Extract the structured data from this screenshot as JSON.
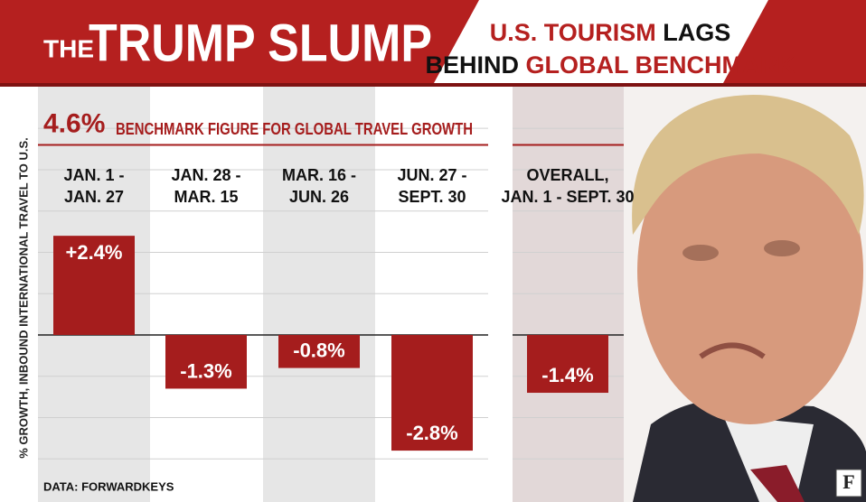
{
  "chart_data": {
    "type": "bar",
    "title": [
      "THE",
      "TRUMP SLUMP"
    ],
    "subtitle": [
      [
        {
          "text": "U.S. TOURISM",
          "color": "#b5201f"
        },
        {
          "text": " LAGS",
          "color": "#111111"
        }
      ],
      [
        {
          "text": "BEHIND ",
          "color": "#111111"
        },
        {
          "text": "GLOBAL BENCHMARK",
          "color": "#b5201f"
        }
      ]
    ],
    "y_label": "% GROWTH, INBOUND INTERNATIONAL TRAVEL TO U.S.",
    "categories": [
      [
        "JAN. 1 -",
        "JAN. 27"
      ],
      [
        "JAN. 28 -",
        "MAR. 15"
      ],
      [
        "MAR. 16 -",
        "JUN. 26"
      ],
      [
        "JUN. 27 -",
        "SEPT. 30"
      ],
      [
        "OVERALL,",
        "JAN. 1 - SEPT. 30"
      ]
    ],
    "values": [
      2.4,
      -1.3,
      -0.8,
      -2.8,
      -1.4
    ],
    "value_labels": [
      "+2.4%",
      "-1.3%",
      "-0.8%",
      "-2.8%",
      "-1.4%"
    ],
    "color": "#a51d1d",
    "benchmark": {
      "value": 4.6,
      "label": "4.6%",
      "text": "BENCHMARK FIGURE FOR GLOBAL TRAVEL GROWTH"
    },
    "ylim": [
      -4,
      5.9
    ],
    "yticks": [
      -3,
      -2,
      -1,
      0,
      1,
      2,
      3,
      4,
      5
    ],
    "grid": true,
    "source": "DATA: FORWARDKEYS",
    "logo": "F"
  }
}
